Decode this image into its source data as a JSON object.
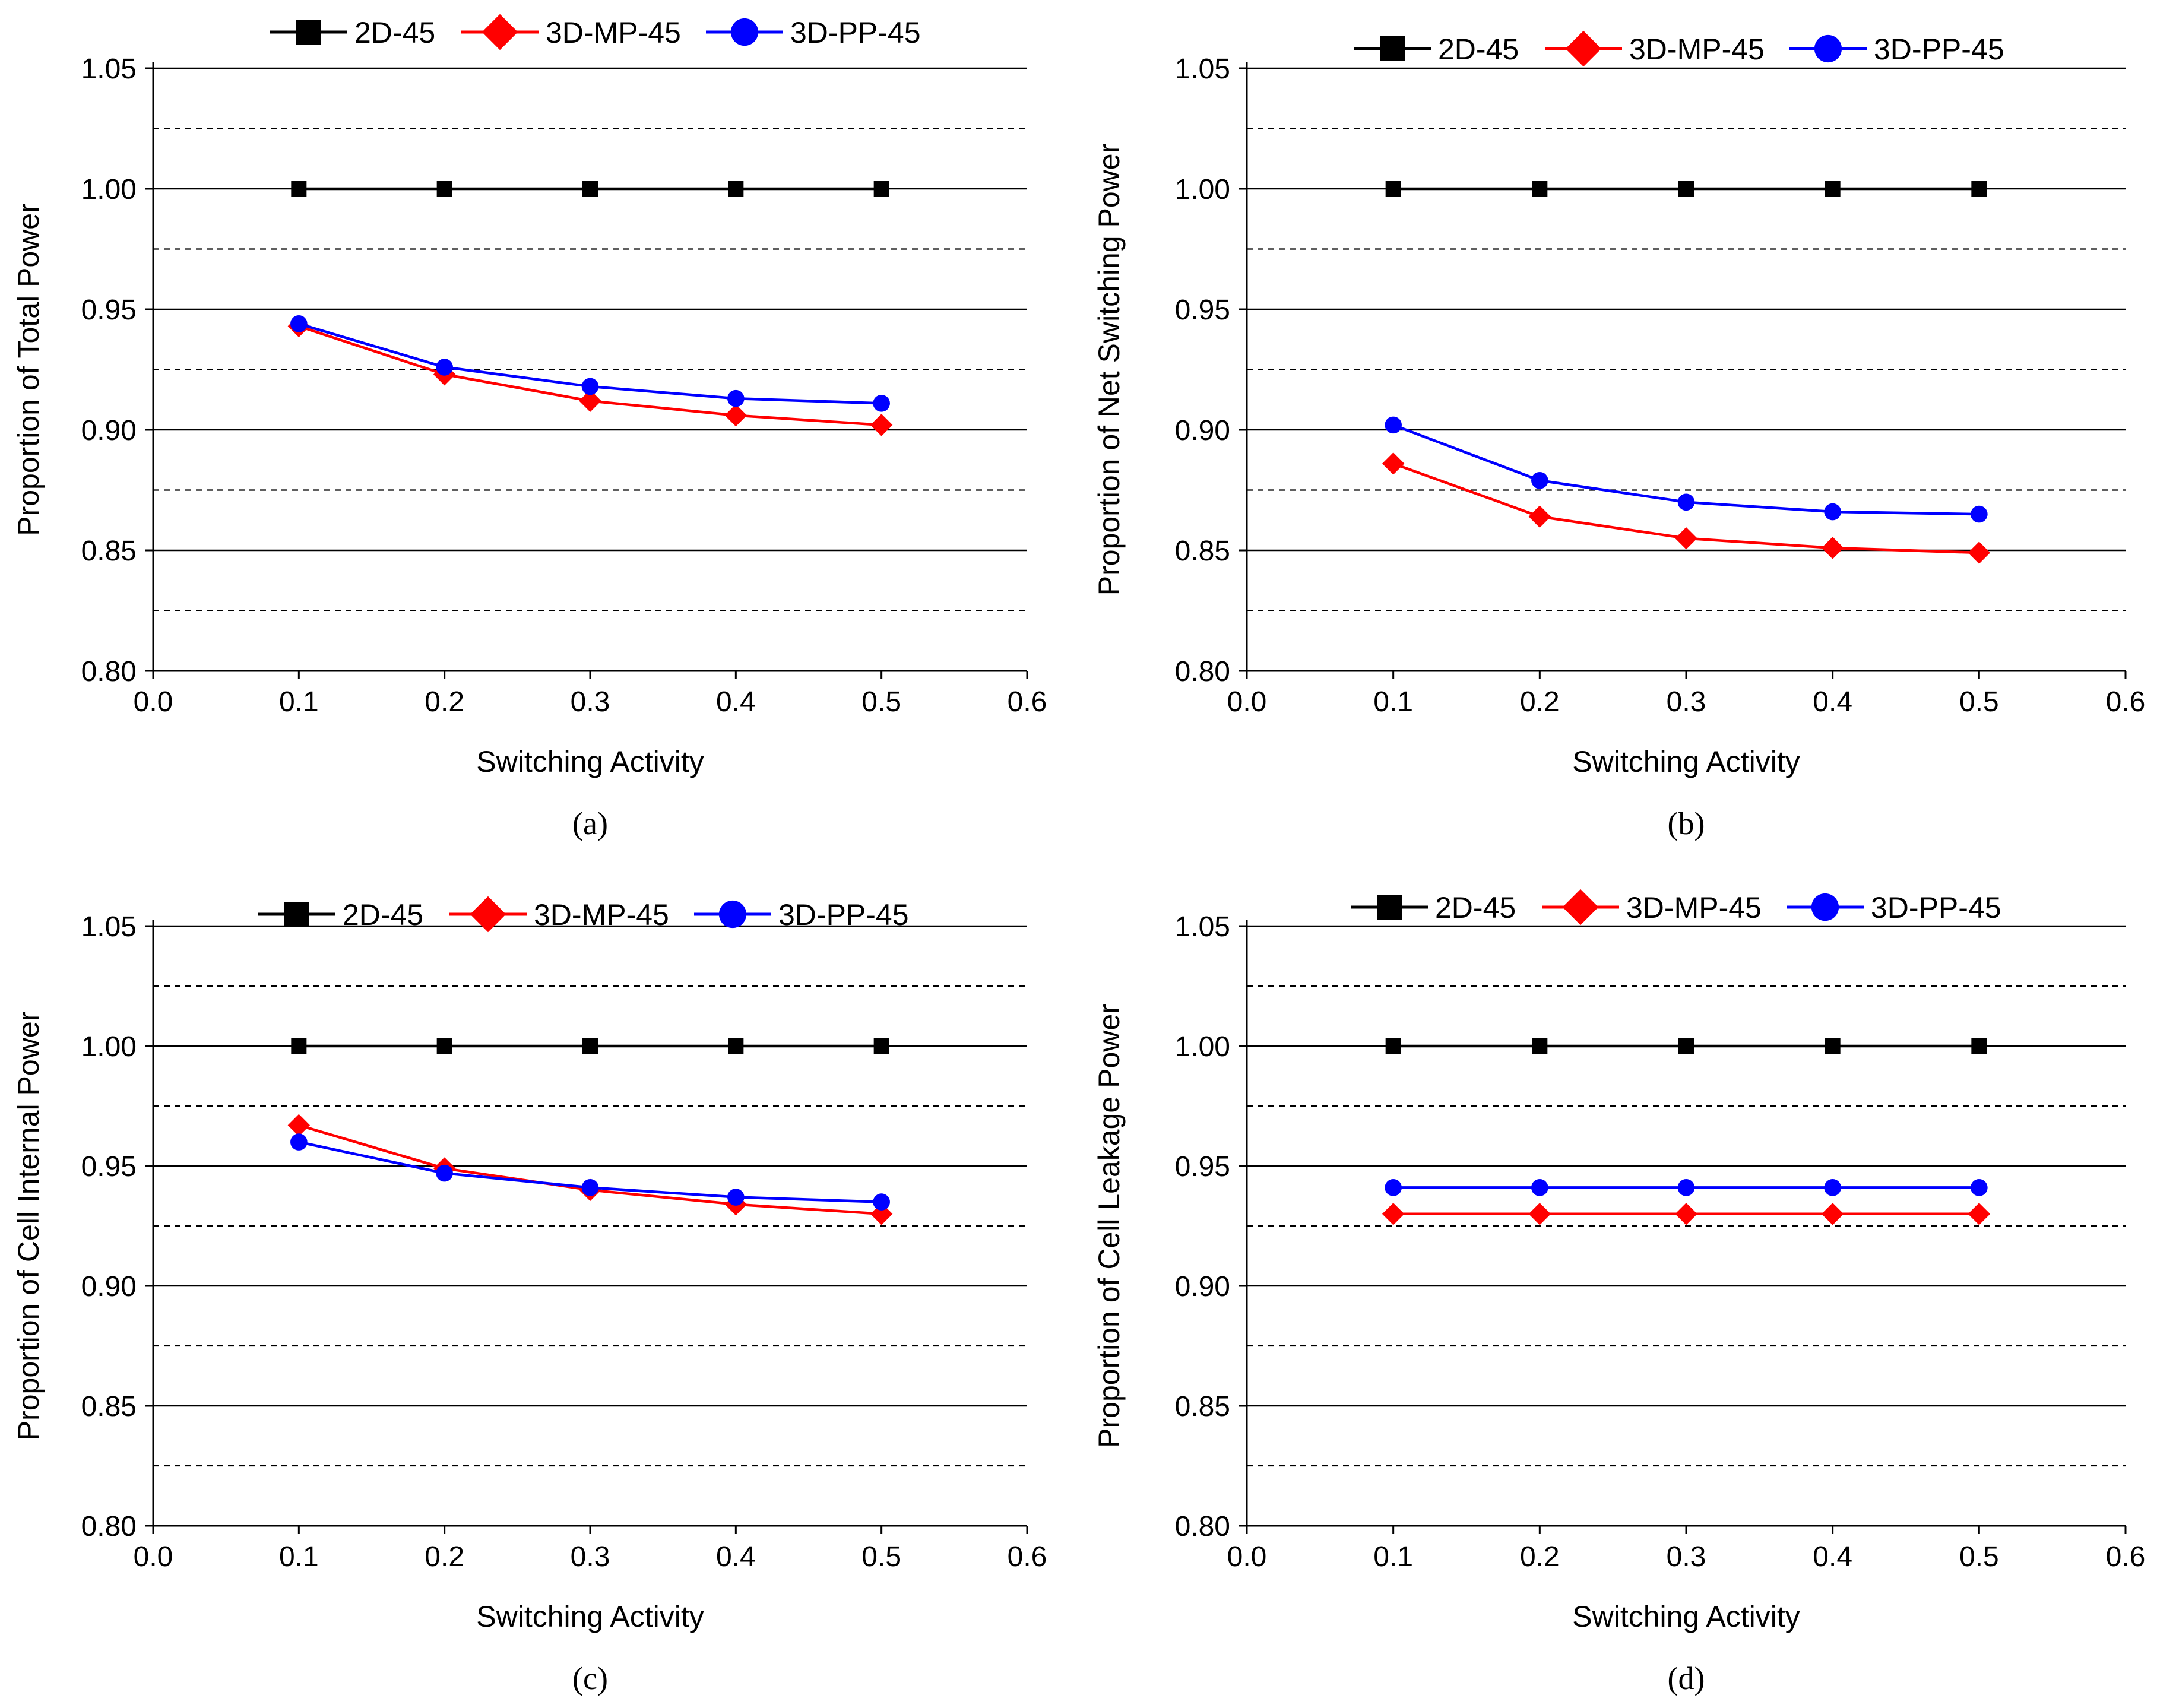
{
  "colors": {
    "2D-45": "#000000",
    "3D-MP-45": "#ff0000",
    "3D-PP-45": "#0000ff"
  },
  "markers": {
    "2D-45": "square",
    "3D-MP-45": "diamond",
    "3D-PP-45": "circle"
  },
  "chart_data": [
    {
      "type": "line",
      "panel_label": "(a)",
      "xlabel": "Switching Activity",
      "ylabel": "Proportion of Total Power",
      "xlim": [
        0.0,
        0.6
      ],
      "ylim": [
        0.8,
        1.05
      ],
      "x_ticks": [
        "0.0",
        "0.1",
        "0.2",
        "0.3",
        "0.4",
        "0.5",
        "0.6"
      ],
      "y_ticks": [
        "0.80",
        "0.85",
        "0.90",
        "0.95",
        "1.00",
        "1.05"
      ],
      "grid": "solid major lines with dashed minor lines",
      "legend_position": "top",
      "x": [
        0.1,
        0.2,
        0.3,
        0.4,
        0.5
      ],
      "series": [
        {
          "name": "2D-45",
          "values": [
            1.0,
            1.0,
            1.0,
            1.0,
            1.0
          ]
        },
        {
          "name": "3D-MP-45",
          "values": [
            0.943,
            0.923,
            0.912,
            0.906,
            0.902
          ]
        },
        {
          "name": "3D-PP-45",
          "values": [
            0.944,
            0.926,
            0.918,
            0.913,
            0.911
          ]
        }
      ]
    },
    {
      "type": "line",
      "panel_label": "(b)",
      "xlabel": "Switching Activity",
      "ylabel": "Proportion of Net Switching Power",
      "xlim": [
        0.0,
        0.6
      ],
      "ylim": [
        0.8,
        1.05
      ],
      "x_ticks": [
        "0.0",
        "0.1",
        "0.2",
        "0.3",
        "0.4",
        "0.5",
        "0.6"
      ],
      "y_ticks": [
        "0.80",
        "0.85",
        "0.90",
        "0.95",
        "1.00",
        "1.05"
      ],
      "grid": "solid major lines with dashed minor lines",
      "legend_position": "top",
      "x": [
        0.1,
        0.2,
        0.3,
        0.4,
        0.5
      ],
      "series": [
        {
          "name": "2D-45",
          "values": [
            1.0,
            1.0,
            1.0,
            1.0,
            1.0
          ]
        },
        {
          "name": "3D-MP-45",
          "values": [
            0.886,
            0.864,
            0.855,
            0.851,
            0.849
          ]
        },
        {
          "name": "3D-PP-45",
          "values": [
            0.902,
            0.879,
            0.87,
            0.866,
            0.865
          ]
        }
      ]
    },
    {
      "type": "line",
      "panel_label": "(c)",
      "xlabel": "Switching Activity",
      "ylabel": "Proportion of Cell Internal Power",
      "xlim": [
        0.0,
        0.6
      ],
      "ylim": [
        0.8,
        1.05
      ],
      "x_ticks": [
        "0.0",
        "0.1",
        "0.2",
        "0.3",
        "0.4",
        "0.5",
        "0.6"
      ],
      "y_ticks": [
        "0.80",
        "0.85",
        "0.90",
        "0.95",
        "1.00",
        "1.05"
      ],
      "grid": "solid major lines with dashed minor lines",
      "legend_position": "top",
      "x": [
        0.1,
        0.2,
        0.3,
        0.4,
        0.5
      ],
      "series": [
        {
          "name": "2D-45",
          "values": [
            1.0,
            1.0,
            1.0,
            1.0,
            1.0
          ]
        },
        {
          "name": "3D-MP-45",
          "values": [
            0.967,
            0.949,
            0.94,
            0.934,
            0.93
          ]
        },
        {
          "name": "3D-PP-45",
          "values": [
            0.96,
            0.947,
            0.941,
            0.937,
            0.935
          ]
        }
      ]
    },
    {
      "type": "line",
      "panel_label": "(d)",
      "xlabel": "Switching Activity",
      "ylabel": "Proportion of Cell Leakage Power",
      "xlim": [
        0.0,
        0.6
      ],
      "ylim": [
        0.8,
        1.05
      ],
      "x_ticks": [
        "0.0",
        "0.1",
        "0.2",
        "0.3",
        "0.4",
        "0.5",
        "0.6"
      ],
      "y_ticks": [
        "0.80",
        "0.85",
        "0.90",
        "0.95",
        "1.00",
        "1.05"
      ],
      "grid": "solid major lines with dashed minor lines",
      "legend_position": "top",
      "x": [
        0.1,
        0.2,
        0.3,
        0.4,
        0.5
      ],
      "series": [
        {
          "name": "2D-45",
          "values": [
            1.0,
            1.0,
            1.0,
            1.0,
            1.0
          ]
        },
        {
          "name": "3D-MP-45",
          "values": [
            0.93,
            0.93,
            0.93,
            0.93,
            0.93
          ]
        },
        {
          "name": "3D-PP-45",
          "values": [
            0.941,
            0.941,
            0.941,
            0.941,
            0.941
          ]
        }
      ]
    }
  ]
}
